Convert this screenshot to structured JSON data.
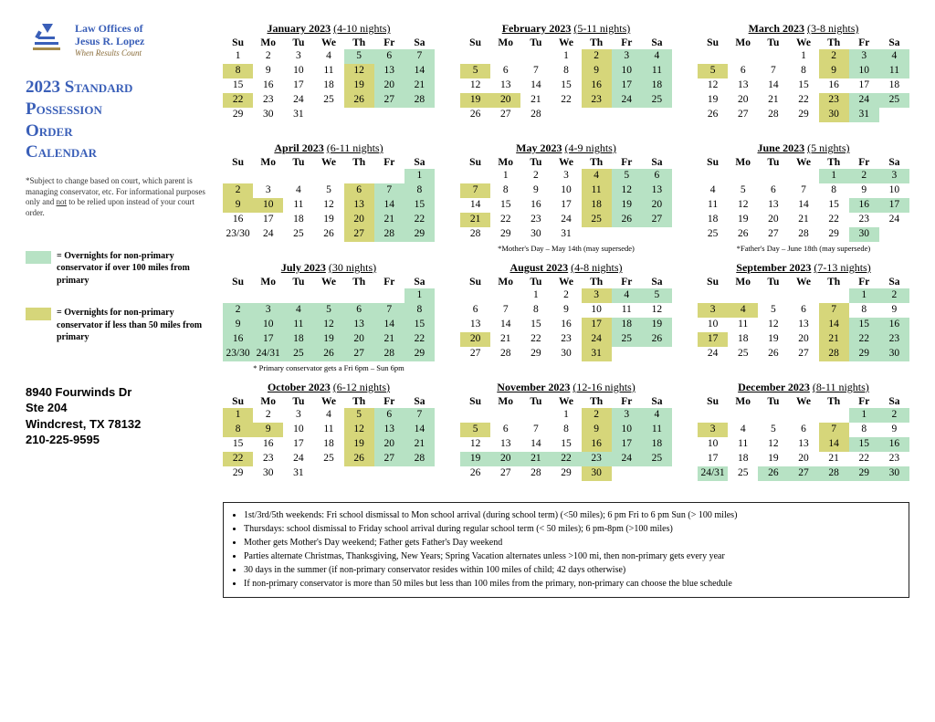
{
  "colors": {
    "accent_blue": "#3a5fb8",
    "highlight_green": "#b7e2c4",
    "highlight_olive": "#d6d67a",
    "text": "#222222"
  },
  "logo": {
    "line1": "Law Offices of",
    "line2": "Jesus R. Lopez",
    "tagline": "When Results Count"
  },
  "title": {
    "l1": "2023 Standard",
    "l2": "Possession",
    "l3": "Order",
    "l4": "Calendar"
  },
  "disclaimer": "*Subject to change based on court, which parent is managing conservator, etc. For informational purposes only and <span class=\"not\">not</span> to be relied upon instead of your court order.",
  "legend": {
    "green": "= Overnights for non-primary conservator if over 100 miles from primary",
    "olive": "= Overnights for non-primary conservator if less than 50 miles from primary"
  },
  "address": {
    "l1": "8940 Fourwinds Dr",
    "l2": "Ste 204",
    "l3": "Windcrest, TX 78132",
    "l4": "210-225-9595"
  },
  "dow": [
    "Su",
    "Mo",
    "Tu",
    "We",
    "Th",
    "Fr",
    "Sa"
  ],
  "months": [
    {
      "name": "January 2023",
      "nights": "(4-10 nights)",
      "startDow": 0,
      "days": 31,
      "hl": {
        "5": "g",
        "6": "g",
        "7": "g",
        "8": "o",
        "12": "o",
        "13": "g",
        "14": "g",
        "19": "o",
        "20": "g",
        "21": "g",
        "22": "o",
        "26": "o",
        "27": "g",
        "28": "g"
      },
      "note": ""
    },
    {
      "name": "February 2023",
      "nights": "(5-11 nights)",
      "startDow": 3,
      "days": 28,
      "hl": {
        "2": "o",
        "3": "g",
        "4": "g",
        "5": "o",
        "9": "o",
        "10": "g",
        "11": "g",
        "16": "o",
        "17": "g",
        "18": "g",
        "19": "o",
        "20": "o",
        "23": "o",
        "24": "g",
        "25": "g"
      },
      "note": ""
    },
    {
      "name": "March 2023",
      "nights": "(3-8 nights)",
      "startDow": 3,
      "days": 31,
      "hl": {
        "2": "o",
        "3": "g",
        "4": "g",
        "5": "o",
        "9": "o",
        "10": "g",
        "11": "g",
        "23": "o",
        "24": "g",
        "25": "g",
        "30": "o",
        "31": "g"
      },
      "note": ""
    },
    {
      "name": "April 2023",
      "nights": "(6-11 nights)",
      "startDow": 6,
      "days": 30,
      "hl": {
        "1": "g",
        "2": "o",
        "6": "o",
        "7": "g",
        "8": "g",
        "9": "o",
        "10": "o",
        "13": "o",
        "14": "g",
        "15": "g",
        "20": "o",
        "21": "g",
        "22": "g",
        "27": "o",
        "28": "g",
        "29": "g"
      },
      "extra": {
        "0": "<span class=\"sm\">23/30</span>"
      },
      "note": ""
    },
    {
      "name": "May 2023",
      "nights": "(4-9 nights)",
      "startDow": 1,
      "days": 31,
      "hl": {
        "4": "o",
        "5": "g",
        "6": "g",
        "7": "o",
        "11": "o",
        "12": "g",
        "13": "g",
        "18": "o",
        "19": "g",
        "20": "g",
        "21": "o",
        "25": "o",
        "26": "g",
        "27": "g"
      },
      "note": "*Mother's Day – May 14th (may supersede)"
    },
    {
      "name": "June 2023",
      "nights": "(5 nights)",
      "startDow": 4,
      "days": 30,
      "hl": {
        "1": "g",
        "2": "g",
        "3": "g",
        "16": "g",
        "17": "g",
        "30": "g"
      },
      "note": "*Father's Day – June 18th (may supersede)"
    },
    {
      "name": "July 2023",
      "nights": "(30 nights)",
      "startDow": 6,
      "days": 31,
      "hl": {
        "1": "g",
        "2": "g",
        "3": "g",
        "4": "g",
        "5": "g",
        "6": "g",
        "7": "g",
        "8": "g",
        "9": "g",
        "10": "g",
        "11": "g",
        "12": "g",
        "13": "g",
        "14": "g",
        "15": "g",
        "16": "g",
        "17": "g",
        "18": "g",
        "19": "g",
        "20": "g",
        "21": "g",
        "22": "g",
        "25": "g",
        "26": "g",
        "27": "g",
        "28": "g",
        "29": "g"
      },
      "extra": {
        "0": "<span class=\"sm\">23/30</span>",
        "1": "<span class=\"sm\">24/31</span>"
      },
      "extraClass": {
        "0": "g",
        "1": "g"
      },
      "note": "* Primary conservator gets a Fri 6pm – Sun 6pm"
    },
    {
      "name": "August 2023",
      "nights": "(4-8 nights)",
      "startDow": 2,
      "days": 31,
      "hl": {
        "3": "o",
        "4": "g",
        "5": "g",
        "17": "o",
        "18": "g",
        "19": "g",
        "20": "o",
        "24": "o",
        "25": "g",
        "26": "g",
        "31": "o"
      },
      "note": ""
    },
    {
      "name": "September 2023",
      "nights": "(7-13 nights)",
      "startDow": 5,
      "days": 30,
      "hl": {
        "1": "g",
        "2": "g",
        "3": "o",
        "4": "o",
        "7": "o",
        "14": "o",
        "15": "g",
        "16": "g",
        "17": "o",
        "21": "o",
        "22": "g",
        "23": "g",
        "28": "o",
        "29": "g",
        "30": "g"
      },
      "note": ""
    },
    {
      "name": "October 2023",
      "nights": "(6-12 nights)",
      "startDow": 0,
      "days": 31,
      "hl": {
        "1": "o",
        "5": "o",
        "6": "g",
        "7": "g",
        "8": "o",
        "9": "o",
        "12": "o",
        "13": "g",
        "14": "g",
        "19": "o",
        "20": "g",
        "21": "g",
        "22": "o",
        "26": "o",
        "27": "g",
        "28": "g"
      },
      "note": ""
    },
    {
      "name": "November 2023",
      "nights": "(12-16 nights)",
      "startDow": 3,
      "days": 30,
      "hl": {
        "2": "o",
        "3": "g",
        "4": "g",
        "5": "o",
        "9": "o",
        "10": "g",
        "11": "g",
        "16": "o",
        "17": "g",
        "18": "g",
        "19": "g",
        "20": "g",
        "21": "g",
        "22": "g",
        "23": "g",
        "24": "g",
        "25": "g",
        "30": "o"
      },
      "note": ""
    },
    {
      "name": "December 2023",
      "nights": "(8-11 nights)",
      "startDow": 5,
      "days": 31,
      "hl": {
        "1": "g",
        "2": "g",
        "3": "o",
        "7": "o",
        "14": "o",
        "15": "g",
        "16": "g",
        "26": "g",
        "27": "g",
        "28": "g",
        "29": "g",
        "30": "g"
      },
      "extra": {
        "0": "<span class=\"sm\">24/31</span>"
      },
      "extraClass": {
        "0": "g"
      },
      "note": ""
    }
  ],
  "notes": [
    "1st/3rd/5th weekends: Fri school dismissal to Mon school arrival (during school term) (<50 miles); 6 pm Fri to 6 pm Sun (> 100 miles)",
    "Thursdays: school dismissal to Friday school arrival during regular school term (< 50 miles); 6 pm-8pm (>100 miles)",
    "Mother gets Mother's Day weekend; Father gets Father's Day weekend",
    "Parties alternate Christmas, Thanksgiving, New Years; Spring Vacation alternates unless >100 mi, then non-primary gets every year",
    "30 days in the summer (if non-primary conservator resides within 100 miles of child; 42 days otherwise)",
    "If non-primary conservator is more than 50 miles but less than 100 miles from the primary, non-primary can choose the blue schedule"
  ]
}
